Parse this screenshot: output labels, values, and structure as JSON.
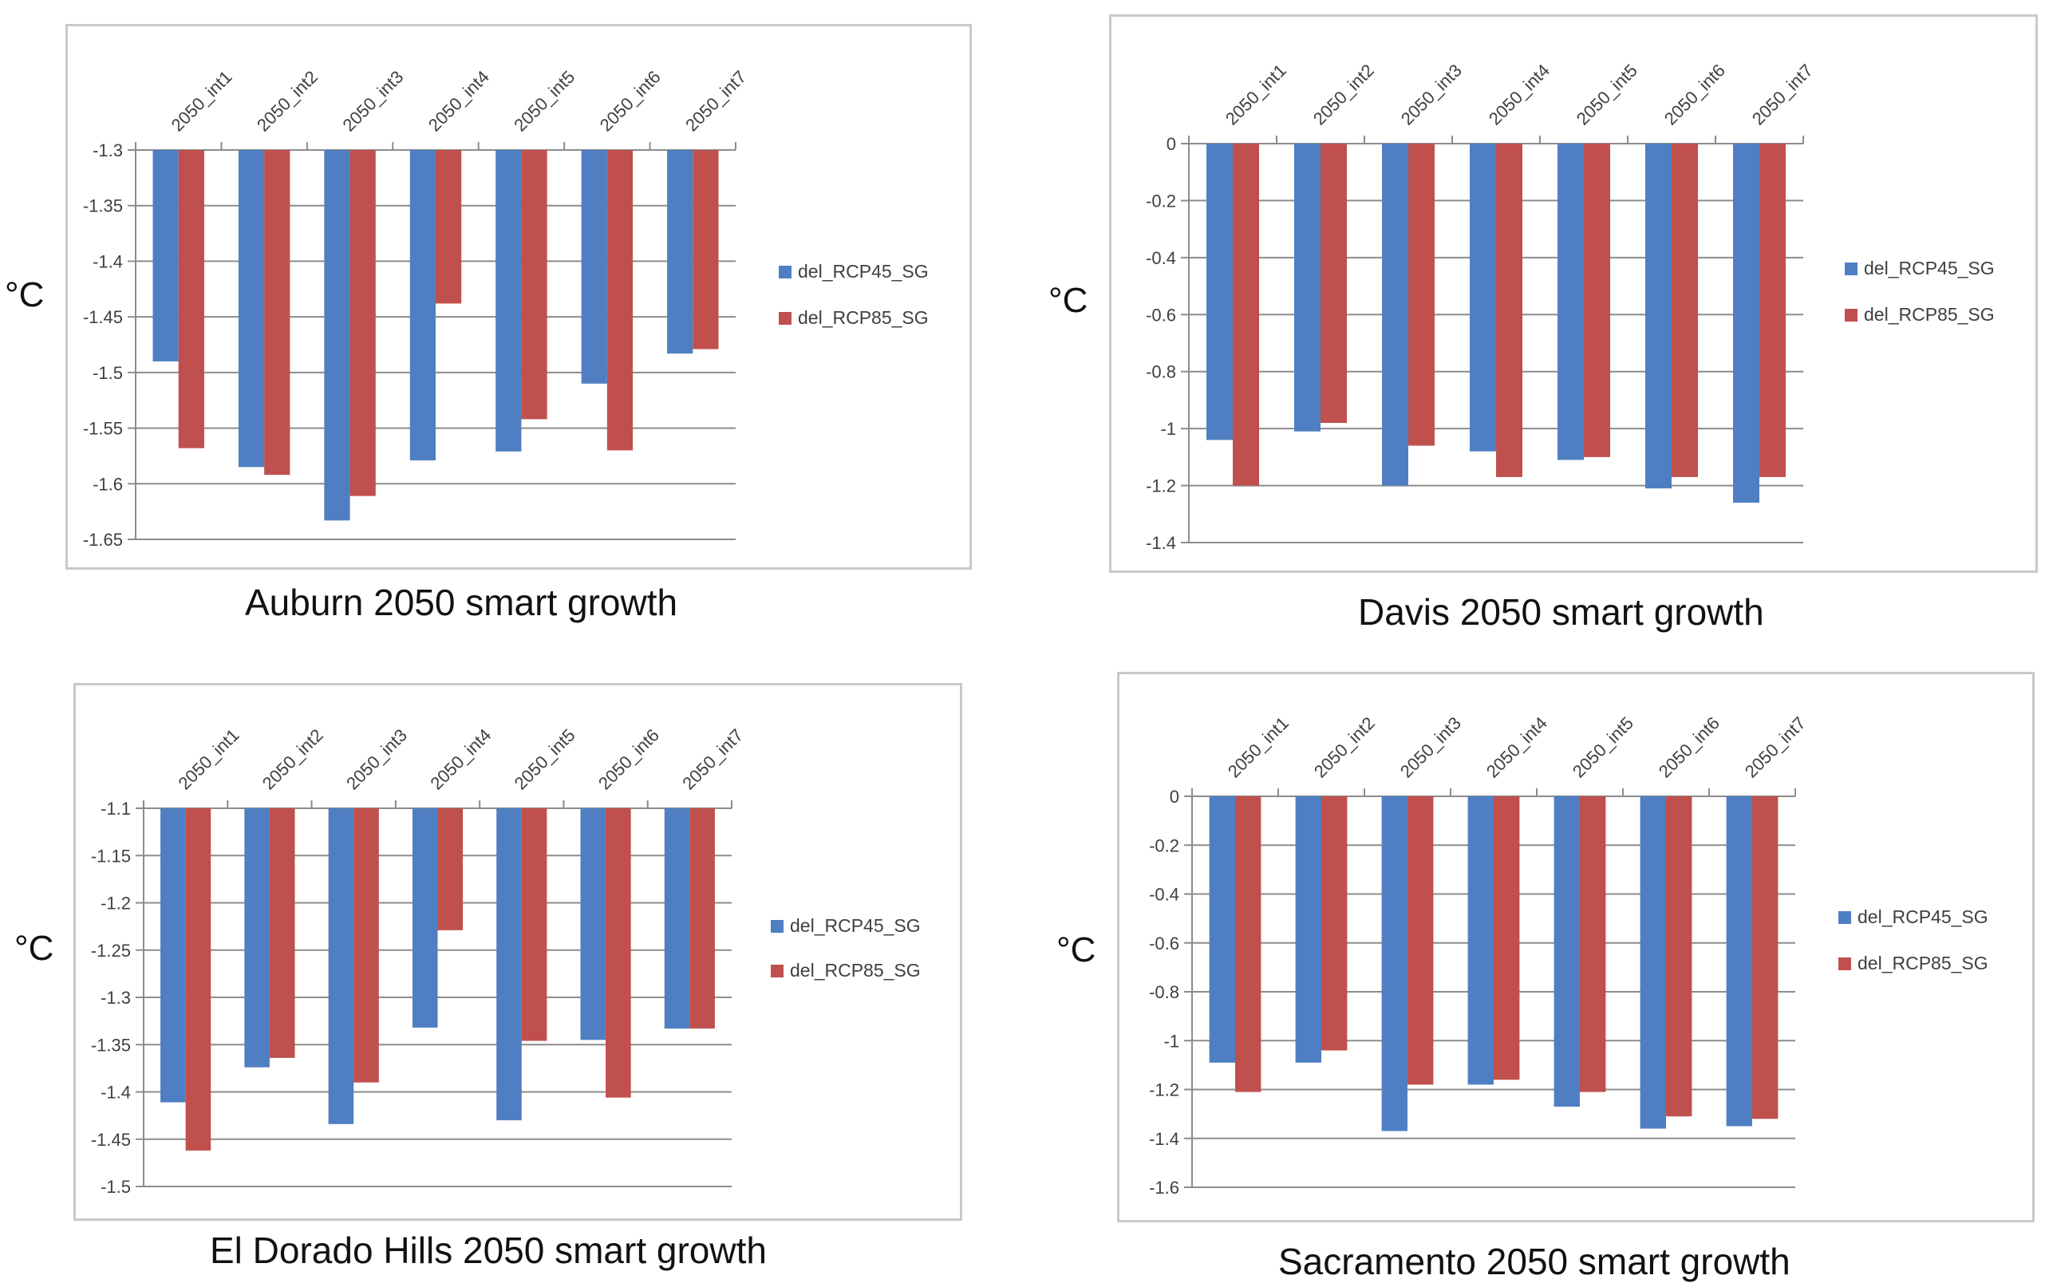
{
  "colors": {
    "rcp45": "#4f7fc2",
    "rcp85": "#c0504d",
    "grid": "#8c8c8c",
    "axis": "#8c8c8c",
    "tick_text": "#404040",
    "border": "#c9c9c9"
  },
  "chart_data": [
    {
      "type": "bar",
      "title": "Auburn 2050 smart growth",
      "ylabel": "°C",
      "categories": [
        "2050_int1",
        "2050_int2",
        "2050_int3",
        "2050_int4",
        "2050_int5",
        "2050_int6",
        "2050_int7"
      ],
      "ylim": [
        -1.65,
        -1.3
      ],
      "yticks": [
        -1.3,
        -1.35,
        -1.4,
        -1.45,
        -1.5,
        -1.55,
        -1.6,
        -1.65
      ],
      "ytick_labels": [
        "-1.3",
        "-1.35",
        "-1.4",
        "-1.45",
        "-1.5",
        "-1.55",
        "-1.6",
        "-1.65"
      ],
      "legend_position": "right",
      "series": [
        {
          "name": "del_RCP45_SG",
          "values": [
            -1.49,
            -1.585,
            -1.633,
            -1.579,
            -1.571,
            -1.51,
            -1.483
          ]
        },
        {
          "name": "del_RCP85_SG",
          "values": [
            -1.568,
            -1.592,
            -1.611,
            -1.438,
            -1.542,
            -1.57,
            -1.479
          ]
        }
      ]
    },
    {
      "type": "bar",
      "title": "Davis 2050 smart growth",
      "ylabel": "°C",
      "categories": [
        "2050_int1",
        "2050_int2",
        "2050_int3",
        "2050_int4",
        "2050_int5",
        "2050_int6",
        "2050_int7"
      ],
      "ylim": [
        -1.4,
        0
      ],
      "yticks": [
        0,
        -0.2,
        -0.4,
        -0.6,
        -0.8,
        -1,
        -1.2,
        -1.4
      ],
      "ytick_labels": [
        "0",
        "-0.2",
        "-0.4",
        "-0.6",
        "-0.8",
        "-1",
        "-1.2",
        "-1.4"
      ],
      "legend_position": "right",
      "series": [
        {
          "name": "del_RCP45_SG",
          "values": [
            -1.04,
            -1.01,
            -1.2,
            -1.08,
            -1.11,
            -1.21,
            -1.26
          ]
        },
        {
          "name": "del_RCP85_SG",
          "values": [
            -1.2,
            -0.98,
            -1.06,
            -1.17,
            -1.1,
            -1.17,
            -1.17
          ]
        }
      ]
    },
    {
      "type": "bar",
      "title": "El Dorado Hills 2050 smart growth",
      "ylabel": "°C",
      "categories": [
        "2050_int1",
        "2050_int2",
        "2050_int3",
        "2050_int4",
        "2050_int5",
        "2050_int6",
        "2050_int7"
      ],
      "ylim": [
        -1.5,
        -1.1
      ],
      "yticks": [
        -1.1,
        -1.15,
        -1.2,
        -1.25,
        -1.3,
        -1.35,
        -1.4,
        -1.45,
        -1.5
      ],
      "ytick_labels": [
        "-1.1",
        "-1.15",
        "-1.2",
        "-1.25",
        "-1.3",
        "-1.35",
        "-1.4",
        "-1.45",
        "-1.5"
      ],
      "legend_position": "right",
      "series": [
        {
          "name": "del_RCP45_SG",
          "values": [
            -1.411,
            -1.374,
            -1.434,
            -1.332,
            -1.43,
            -1.345,
            -1.333
          ]
        },
        {
          "name": "del_RCP85_SG",
          "values": [
            -1.462,
            -1.364,
            -1.39,
            -1.229,
            -1.346,
            -1.406,
            -1.333
          ]
        }
      ]
    },
    {
      "type": "bar",
      "title": "Sacramento 2050 smart growth",
      "ylabel": "°C",
      "categories": [
        "2050_int1",
        "2050_int2",
        "2050_int3",
        "2050_int4",
        "2050_int5",
        "2050_int6",
        "2050_int7"
      ],
      "ylim": [
        -1.6,
        0
      ],
      "yticks": [
        0,
        -0.2,
        -0.4,
        -0.6,
        -0.8,
        -1,
        -1.2,
        -1.4,
        -1.6
      ],
      "ytick_labels": [
        "0",
        "-0.2",
        "-0.4",
        "-0.6",
        "-0.8",
        "-1",
        "-1.2",
        "-1.4",
        "-1.6"
      ],
      "legend_position": "right",
      "series": [
        {
          "name": "del_RCP45_SG",
          "values": [
            -1.09,
            -1.09,
            -1.37,
            -1.18,
            -1.27,
            -1.36,
            -1.35
          ]
        },
        {
          "name": "del_RCP85_SG",
          "values": [
            -1.21,
            -1.04,
            -1.18,
            -1.16,
            -1.21,
            -1.31,
            -1.32
          ]
        }
      ]
    }
  ]
}
